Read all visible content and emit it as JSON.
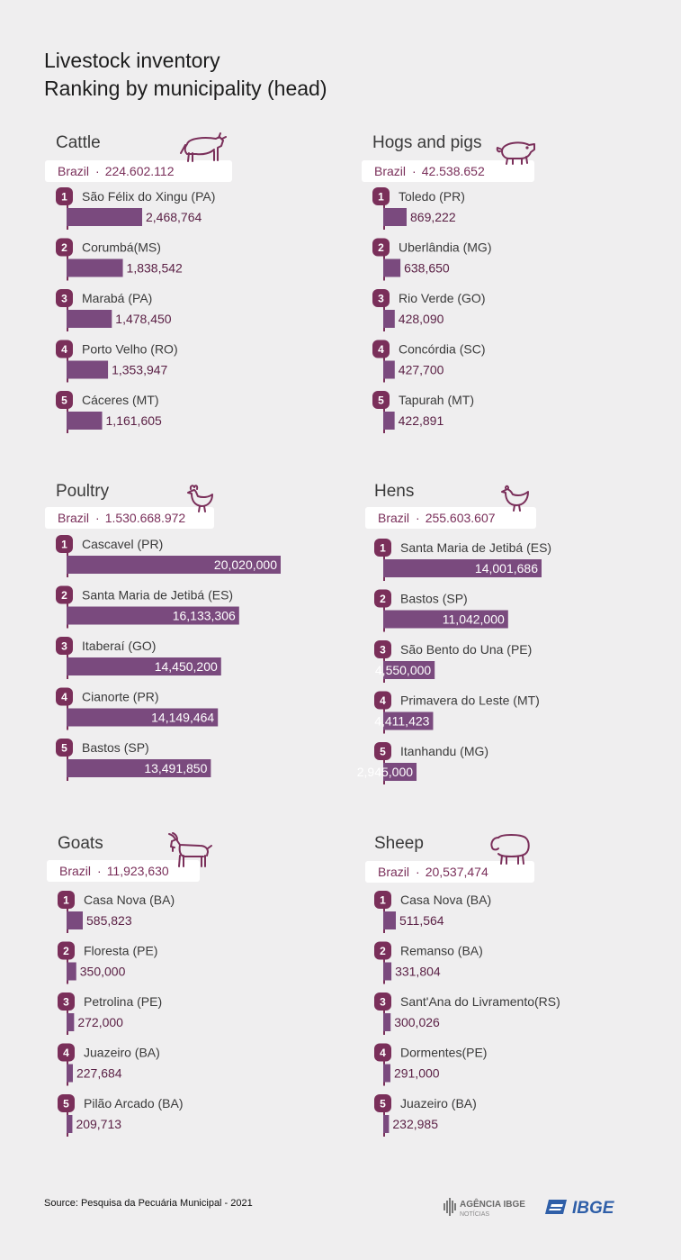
{
  "header": {
    "title_line1": "Livestock inventory",
    "title_line2": "Ranking by municipality (head)"
  },
  "colors": {
    "bar": "#7a4a7e",
    "badge": "#7a2f5a",
    "background": "#efeeef"
  },
  "footer": {
    "source": "Source: Pesquisa da Pecuária Municipal - 2021",
    "agencia_top": "AGÊNCIA IBGE",
    "agencia_bottom": "NOTÍCIAS",
    "ibge_logo": "IBGE"
  },
  "chart_data": [
    {
      "type": "bar",
      "title": "Cattle",
      "icon": "cow-icon",
      "total_label": "Brazil",
      "total": "224.602.112",
      "categories": [
        "São Félix do Xingu (PA)",
        "Corumbá(MS)",
        "Marabá (PA)",
        "Porto Velho (RO)",
        "Cáceres  (MT)"
      ],
      "values": [
        2468764,
        1838542,
        1478450,
        1353947,
        1161605
      ],
      "labels": [
        "2,468,764",
        "1,838,542",
        "1,478,450",
        "1,353,947",
        "1,161,605"
      ]
    },
    {
      "type": "bar",
      "title": "Hogs and pigs",
      "icon": "pig-icon",
      "total_label": "Brazil",
      "total": "42.538.652",
      "categories": [
        "Toledo (PR)",
        "Uberlândia  (MG)",
        "Rio Verde (GO)",
        "Concórdia  (SC)",
        "Tapurah (MT)"
      ],
      "values": [
        869222,
        638650,
        428090,
        427700,
        422891
      ],
      "labels": [
        "869,222",
        "638,650",
        "428,090",
        "427,700",
        "422,891"
      ]
    },
    {
      "type": "bar",
      "title": "Poultry",
      "icon": "rooster-icon",
      "total_label": "Brazil",
      "total": "1.530.668.972",
      "categories": [
        "Cascavel (PR)",
        "Santa Maria de Jetibá  (ES)",
        "Itaberaí (GO)",
        "Cianorte (PR)",
        "Bastos (SP)"
      ],
      "values": [
        20020000,
        16133306,
        14450200,
        14149464,
        13491850
      ],
      "labels": [
        "20,020,000",
        "16,133,306",
        "14,450,200",
        "14,149,464",
        "13,491,850"
      ]
    },
    {
      "type": "bar",
      "title": "Hens",
      "icon": "hen-icon",
      "total_label": "Brazil",
      "total": "255.603.607",
      "categories": [
        "Santa Maria de Jetibá  (ES)",
        "Bastos  (SP)",
        "São Bento do Una (PE)",
        "Primavera do Leste (MT)",
        "Itanhandu (MG)"
      ],
      "values": [
        14001686,
        11042000,
        4550000,
        4411423,
        2945000
      ],
      "labels": [
        "14,001,686",
        "11,042,000",
        "4,550,000",
        "4,411,423",
        "2,945,000"
      ]
    },
    {
      "type": "bar",
      "title": "Goats",
      "icon": "goat-icon",
      "total_label": "Brazil",
      "total": "11,923,630",
      "categories": [
        "Casa Nova  (BA)",
        "Floresta (PE)",
        "Petrolina (PE)",
        "Juazeiro (BA)",
        "Pilão Arcado (BA)"
      ],
      "values": [
        585823,
        350000,
        272000,
        227684,
        209713
      ],
      "labels": [
        "585,823",
        "350,000",
        "272,000",
        "227,684",
        "209,713"
      ]
    },
    {
      "type": "bar",
      "title": "Sheep",
      "icon": "sheep-icon",
      "total_label": "Brazil",
      "total": "20,537,474",
      "categories": [
        "Casa Nova  (BA)",
        "Remanso (BA)",
        "Sant'Ana do Livramento(RS)",
        "Dormentes(PE)",
        "Juazeiro  (BA)"
      ],
      "values": [
        511564,
        331804,
        300026,
        291000,
        232985
      ],
      "labels": [
        "511,564",
        "331,804",
        "300,026",
        "291,000",
        "232,985"
      ]
    }
  ]
}
